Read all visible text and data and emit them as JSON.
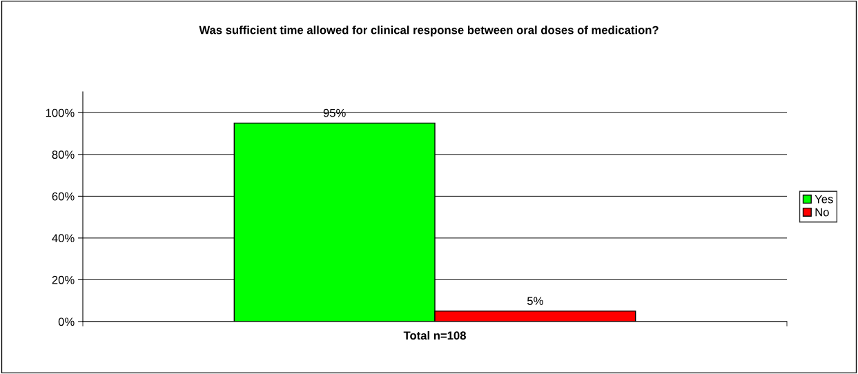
{
  "chart_data": {
    "type": "bar",
    "title": "Was sufficient time allowed for clinical response between oral doses of medication?",
    "categories": [
      "Total n=108"
    ],
    "series": [
      {
        "name": "Yes",
        "color": "#00ff00",
        "values": [
          95
        ],
        "value_labels": [
          "95%"
        ]
      },
      {
        "name": "No",
        "color": "#ff0000",
        "values": [
          5
        ],
        "value_labels": [
          "5%"
        ]
      }
    ],
    "ylim": [
      0,
      110
    ],
    "yticks": [
      {
        "value": 0,
        "label": "0%"
      },
      {
        "value": 20,
        "label": "20%"
      },
      {
        "value": 40,
        "label": "40%"
      },
      {
        "value": 60,
        "label": "60%"
      },
      {
        "value": 80,
        "label": "80%"
      },
      {
        "value": 100,
        "label": "100%"
      }
    ],
    "grid": "y",
    "legend": "right"
  }
}
